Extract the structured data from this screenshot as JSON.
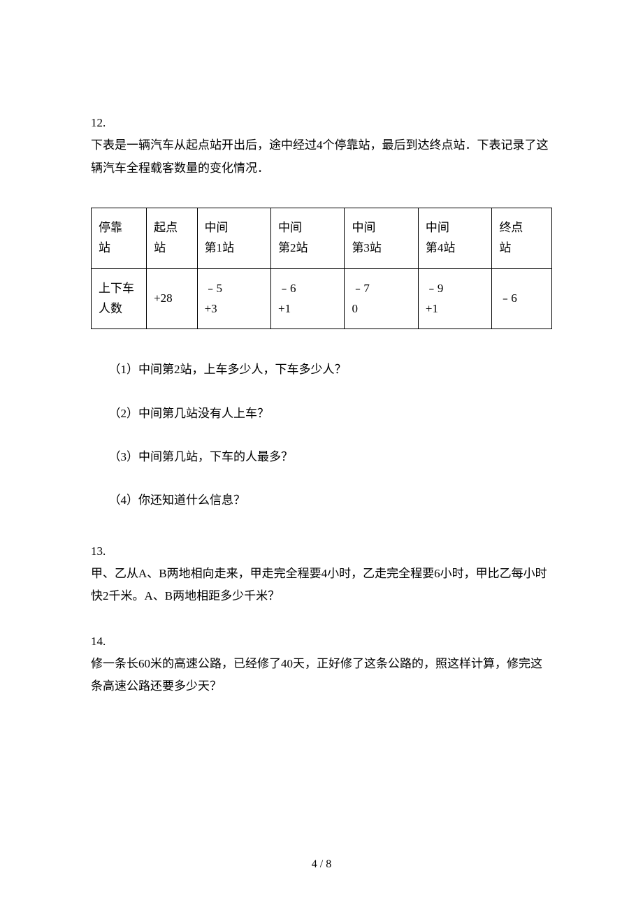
{
  "problems": {
    "p12": {
      "number": "12.",
      "intro": "下表是一辆汽车从起点站开出后，途中经过4个停靠站，最后到达终点站．下表记录了这辆汽车全程载客数量的变化情况．",
      "table": {
        "header": {
          "c0": {
            "l1": "停靠",
            "l2": "站"
          },
          "c1": {
            "l1": "起点",
            "l2": "站"
          },
          "c2": {
            "l1": "中间",
            "l2": "第1站"
          },
          "c3": {
            "l1": "中间",
            "l2": "第2站"
          },
          "c4": {
            "l1": "中间",
            "l2": "第3站"
          },
          "c5": {
            "l1": "中间",
            "l2": "第4站"
          },
          "c6": {
            "l1": "终点",
            "l2": "站"
          }
        },
        "row": {
          "c0": {
            "l1": "上下车",
            "l2": "人数"
          },
          "c1": {
            "l1": "+28"
          },
          "c2": {
            "l1": "﹣5",
            "l2": "+3"
          },
          "c3": {
            "l1": "﹣6",
            "l2": "+1"
          },
          "c4": {
            "l1": "﹣7",
            "l2": "0"
          },
          "c5": {
            "l1": "﹣9",
            "l2": "+1"
          },
          "c6": {
            "l1": "﹣6"
          }
        }
      },
      "questions": {
        "q1": "（1）中间第2站，上车多少人，下车多少人？",
        "q2": "（2）中间第几站没有人上车？",
        "q3": "（3）中间第几站，下车的人最多？",
        "q4": "（4）你还知道什么信息？"
      }
    },
    "p13": {
      "number": "13.",
      "text": "甲、乙从A、B两地相向走来，甲走完全程要4小时，乙走完全程要6小时，甲比乙每小时快2千米。A、B两地相距多少千米？"
    },
    "p14": {
      "number": "14.",
      "text": "修一条长60米的高速公路，已经修了40天，正好修了这条公路的，照这样计算，修完这条高速公路还要多少天？"
    }
  },
  "footer": "4 / 8"
}
